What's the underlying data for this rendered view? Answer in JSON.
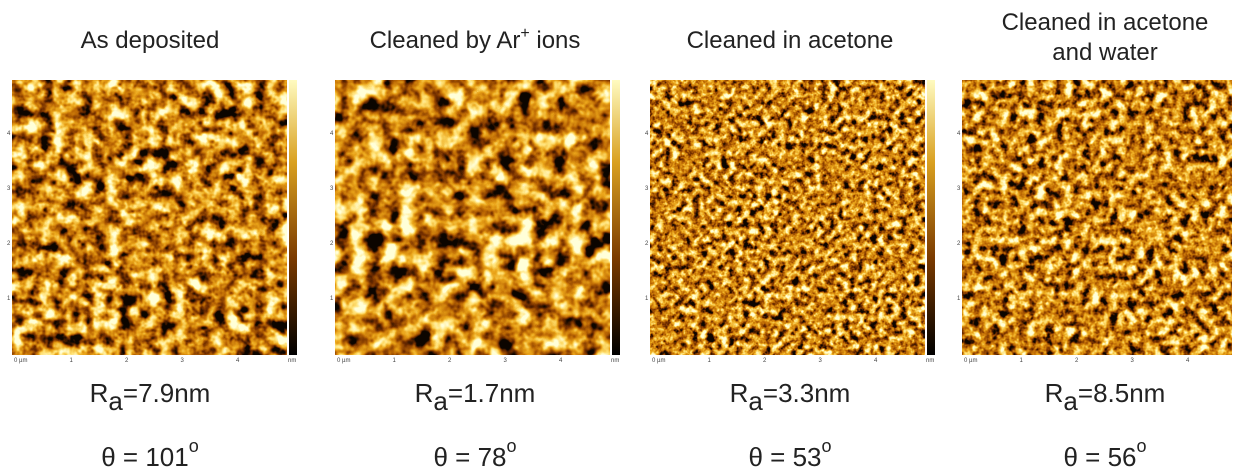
{
  "axis": {
    "x_ticks": [
      "0 µm",
      "1",
      "2",
      "3",
      "4"
    ],
    "y_ticks": [
      "1",
      "2",
      "3",
      "4"
    ],
    "unit": "nm"
  },
  "panels": [
    {
      "title_lines": [
        {
          "text": "As deposited"
        }
      ],
      "ra": {
        "main": "R",
        "sub": "a",
        "rest": "=7.9nm"
      },
      "theta": {
        "main": "θ = 101",
        "sup": "o"
      }
    },
    {
      "title_lines": [
        {
          "text": "Cleaned by Ar",
          "sup": "+",
          "after": " ions"
        }
      ],
      "ra": {
        "main": "R",
        "sub": "a",
        "rest": "=1.7nm"
      },
      "theta": {
        "main": "θ = 78",
        "sup": "o"
      }
    },
    {
      "title_lines": [
        {
          "text": "Cleaned in acetone"
        }
      ],
      "ra": {
        "main": "R",
        "sub": "a",
        "rest": "=3.3nm"
      },
      "theta": {
        "main": "θ = 53",
        "sup": "o"
      }
    },
    {
      "title_lines": [
        {
          "text": "Cleaned in acetone"
        },
        {
          "text": "and water"
        }
      ],
      "ra": {
        "main": "R",
        "sub": "a",
        "rest": "=8.5nm"
      },
      "theta": {
        "main": "θ = 56",
        "sup": "o"
      }
    }
  ]
}
